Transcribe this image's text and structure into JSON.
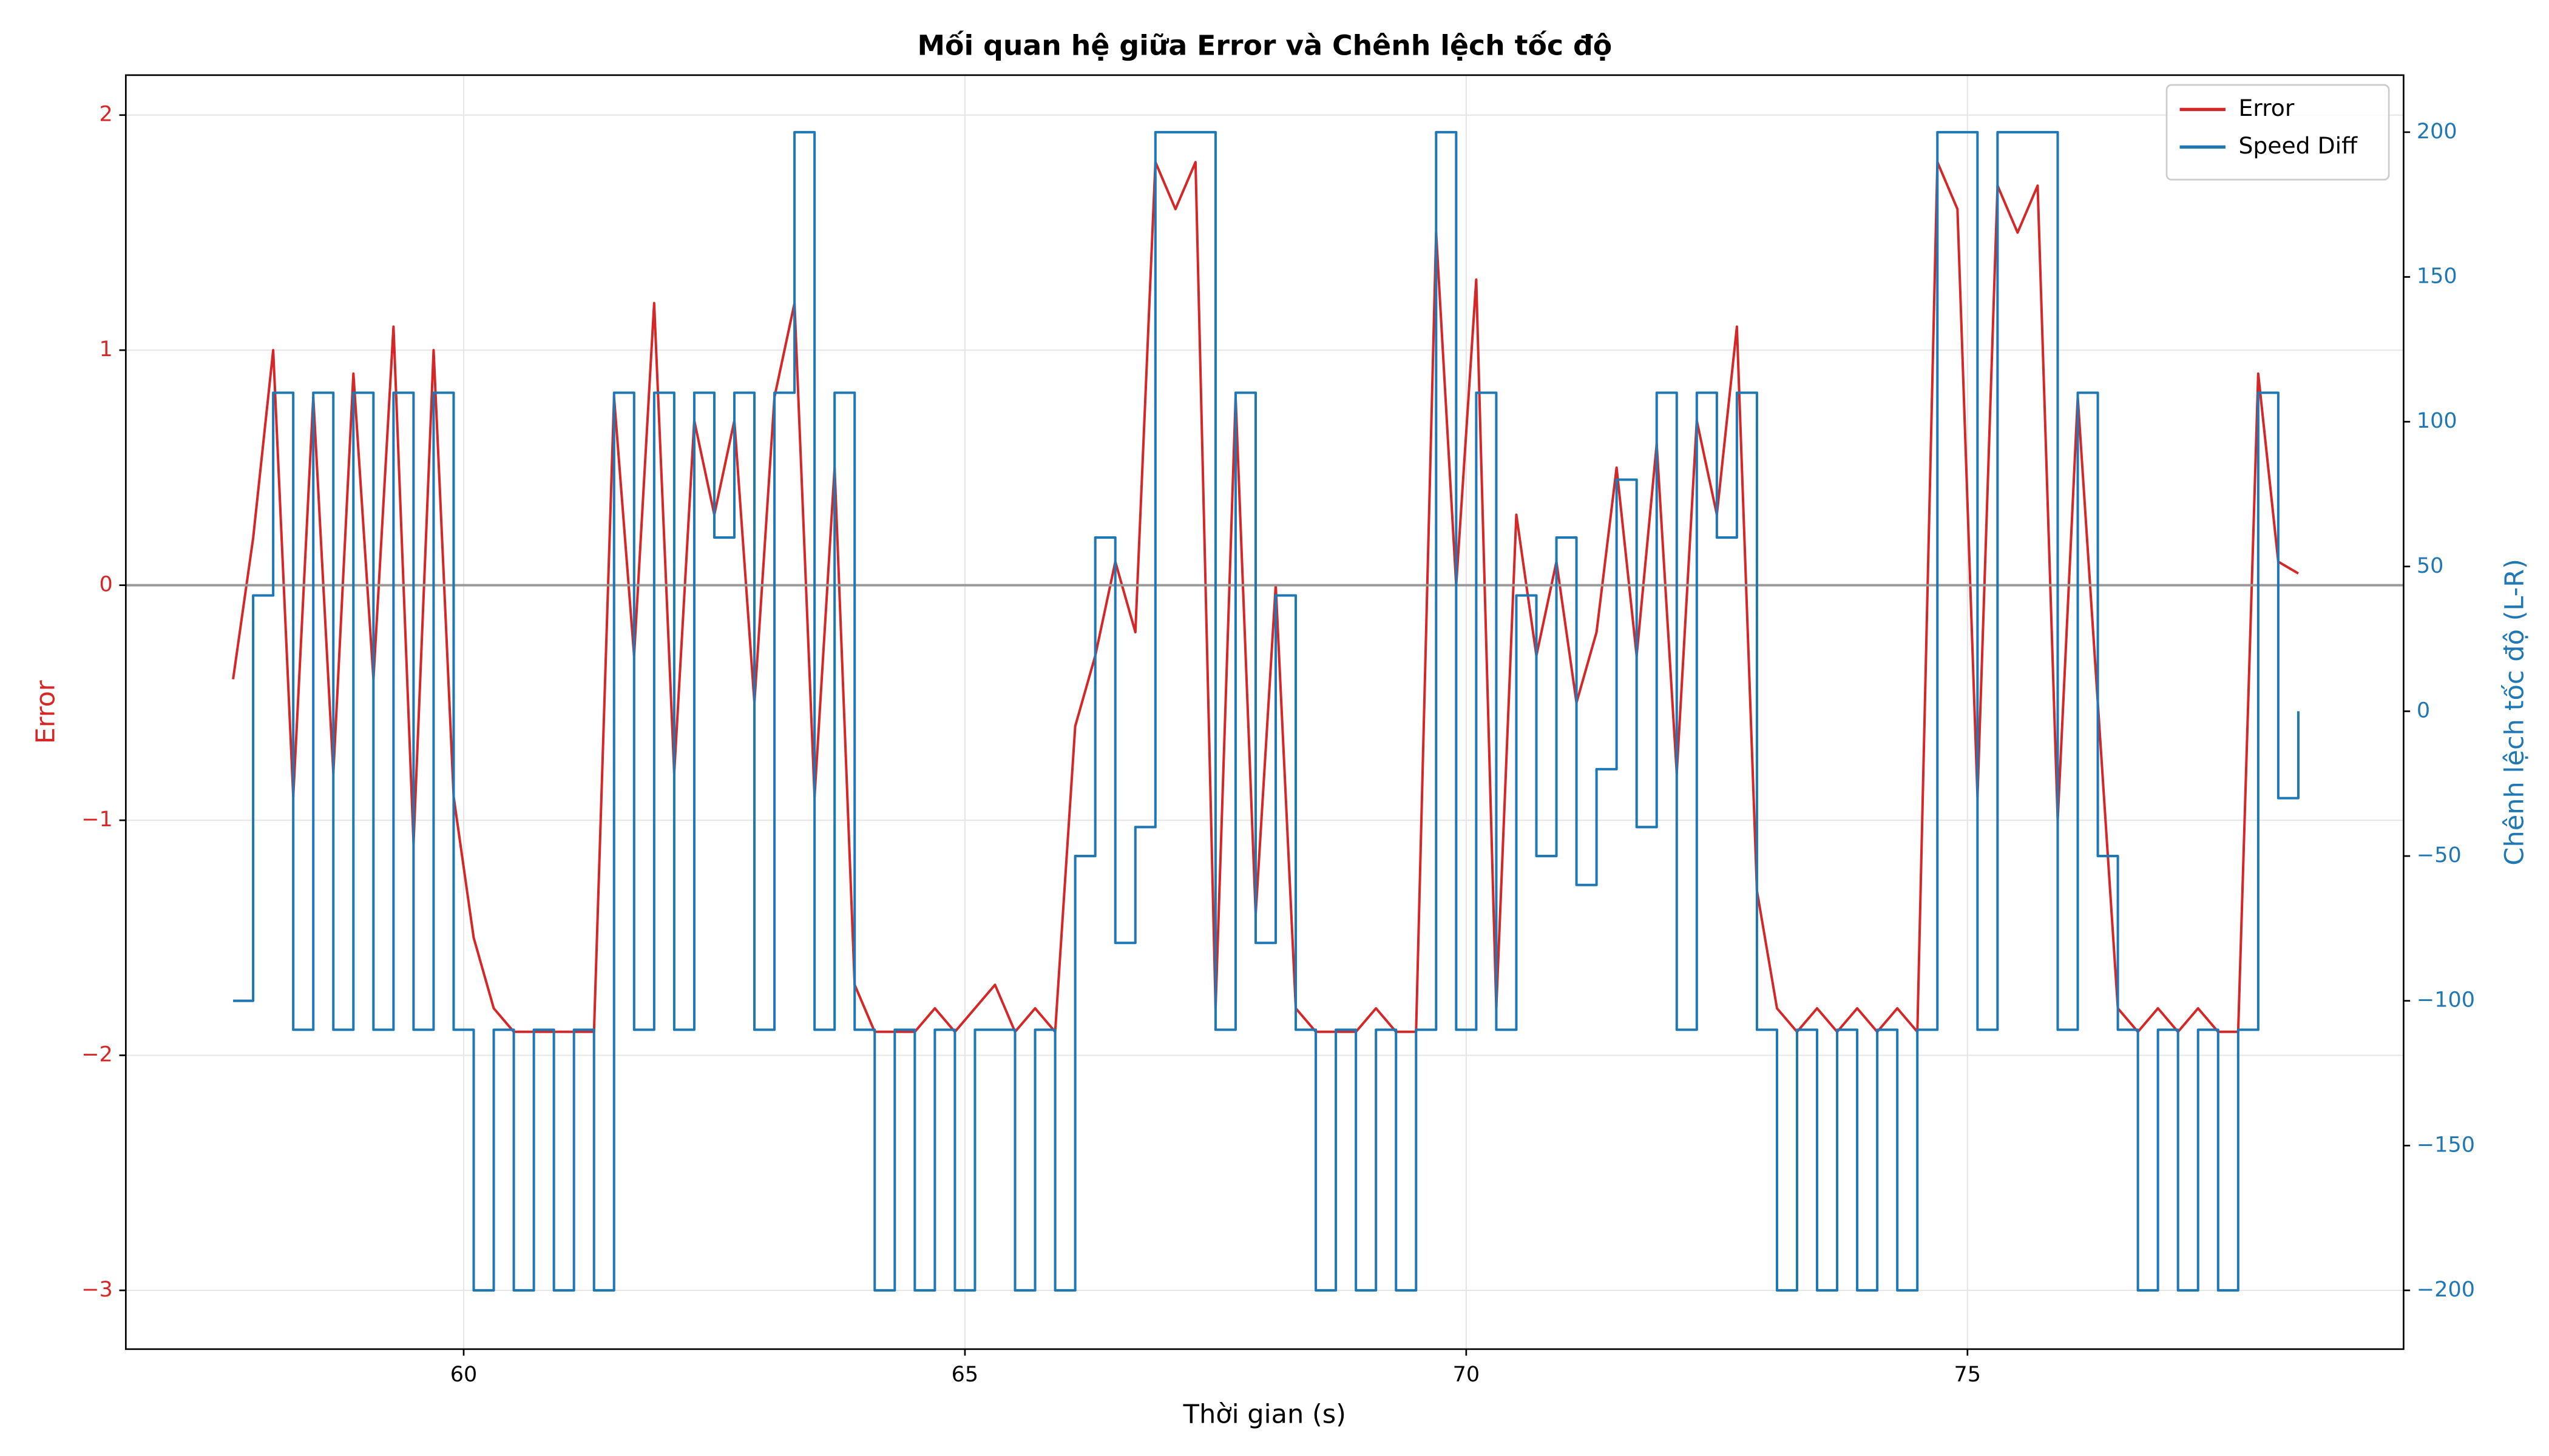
{
  "chart_data": {
    "type": "line",
    "title": "Mối quan hệ giữa Error và Chênh lệch tốc độ",
    "x_label": "Thời gian (s)",
    "y_label": "Error",
    "y2_label": "Chênh lệch tốc độ (L-R)",
    "x": [
      57.7,
      57.9,
      58.1,
      58.3,
      58.5,
      58.7,
      58.9,
      59.1,
      59.3,
      59.5,
      59.7,
      59.9,
      60.1,
      60.3,
      60.5,
      60.7,
      60.9,
      61.1,
      61.3,
      61.5,
      61.7,
      61.9,
      62.1,
      62.3,
      62.5,
      62.7,
      62.9,
      63.1,
      63.3,
      63.5,
      63.7,
      63.9,
      64.1,
      64.3,
      64.5,
      64.7,
      64.9,
      65.1,
      65.3,
      65.5,
      65.7,
      65.9,
      66.1,
      66.3,
      66.5,
      66.7,
      66.9,
      67.1,
      67.3,
      67.5,
      67.7,
      67.9,
      68.1,
      68.3,
      68.5,
      68.7,
      68.9,
      69.1,
      69.3,
      69.5,
      69.7,
      69.9,
      70.1,
      70.3,
      70.5,
      70.7,
      70.9,
      71.1,
      71.3,
      71.5,
      71.7,
      71.9,
      72.1,
      72.3,
      72.5,
      72.7,
      72.9,
      73.1,
      73.3,
      73.5,
      73.7,
      73.9,
      74.1,
      74.3,
      74.5,
      74.7,
      74.9,
      75.1,
      75.3,
      75.5,
      75.7,
      75.9,
      76.1,
      76.3,
      76.5,
      76.7,
      76.9,
      77.1,
      77.3,
      77.5,
      77.7,
      77.9,
      78.1,
      78.3
    ],
    "series": [
      {
        "name": "Error",
        "color": "#d62728",
        "axis": "y",
        "values": [
          -0.4,
          0.2,
          1.0,
          -0.9,
          0.8,
          -0.8,
          0.9,
          -0.4,
          1.1,
          -1.1,
          1.0,
          -0.9,
          -1.5,
          -1.8,
          -1.9,
          -1.9,
          -1.9,
          -1.9,
          -1.9,
          0.8,
          -0.3,
          1.2,
          -0.8,
          0.7,
          0.3,
          0.7,
          -0.5,
          0.8,
          1.2,
          -0.9,
          0.5,
          -1.7,
          -1.9,
          -1.9,
          -1.9,
          -1.8,
          -1.9,
          -1.8,
          -1.7,
          -1.9,
          -1.8,
          -1.9,
          -0.6,
          -0.3,
          0.1,
          -0.2,
          1.8,
          1.6,
          1.8,
          -1.8,
          0.8,
          -1.4,
          0.0,
          -1.8,
          -1.9,
          -1.9,
          -1.9,
          -1.8,
          -1.9,
          -1.9,
          1.5,
          0.0,
          1.3,
          -1.8,
          0.3,
          -0.3,
          0.1,
          -0.5,
          -0.2,
          0.5,
          -0.3,
          0.6,
          -0.8,
          0.7,
          0.3,
          1.1,
          -1.3,
          -1.8,
          -1.9,
          -1.8,
          -1.9,
          -1.8,
          -1.9,
          -1.8,
          -1.9,
          1.8,
          1.6,
          -0.9,
          1.7,
          1.5,
          1.7,
          -1.0,
          0.8,
          -0.5,
          -1.8,
          -1.9,
          -1.8,
          -1.9,
          -1.8,
          -1.9,
          -1.9,
          0.9,
          0.1,
          0.05
        ]
      },
      {
        "name": "Speed Diff",
        "color": "#1f77b4",
        "axis": "y2",
        "drawstyle": "steps",
        "values": [
          -100,
          40,
          110,
          -110,
          110,
          -110,
          110,
          -110,
          110,
          -110,
          110,
          -110,
          -200,
          -110,
          -200,
          -110,
          -200,
          -110,
          -200,
          110,
          -110,
          110,
          -110,
          110,
          60,
          110,
          -110,
          110,
          200,
          -110,
          110,
          -110,
          -200,
          -110,
          -200,
          -110,
          -200,
          -110,
          -110,
          -200,
          -110,
          -200,
          -50,
          60,
          -80,
          -40,
          200,
          200,
          200,
          -110,
          110,
          -80,
          40,
          -110,
          -200,
          -110,
          -200,
          -110,
          -200,
          -110,
          200,
          -110,
          110,
          -110,
          40,
          -50,
          60,
          -60,
          -20,
          80,
          -40,
          110,
          -110,
          110,
          60,
          110,
          -110,
          -200,
          -110,
          -200,
          -110,
          -200,
          -110,
          -200,
          -110,
          200,
          200,
          -110,
          200,
          200,
          200,
          -110,
          110,
          -50,
          -110,
          -200,
          -110,
          -200,
          -110,
          -200,
          -110,
          110,
          -30,
          0
        ]
      }
    ],
    "reference_line": 0,
    "xlim": [
      56.63,
      79.35
    ],
    "ylim": [
      -3.25,
      2.17
    ],
    "y2lim": [
      -220.3,
      219.7
    ],
    "xticks": [
      60,
      65,
      70,
      75
    ],
    "yticks": [
      {
        "value": -3,
        "label": "−3"
      },
      {
        "value": -2,
        "label": "−2"
      },
      {
        "value": -1,
        "label": "−1"
      },
      0,
      1,
      2
    ],
    "y2ticks": [
      {
        "value": -200,
        "label": "−200"
      },
      {
        "value": -150,
        "label": "−150"
      },
      {
        "value": -100,
        "label": "−100"
      },
      {
        "value": -50,
        "label": "−50"
      },
      0,
      50,
      100,
      150,
      200
    ],
    "grid": true,
    "legend": "upper right"
  }
}
